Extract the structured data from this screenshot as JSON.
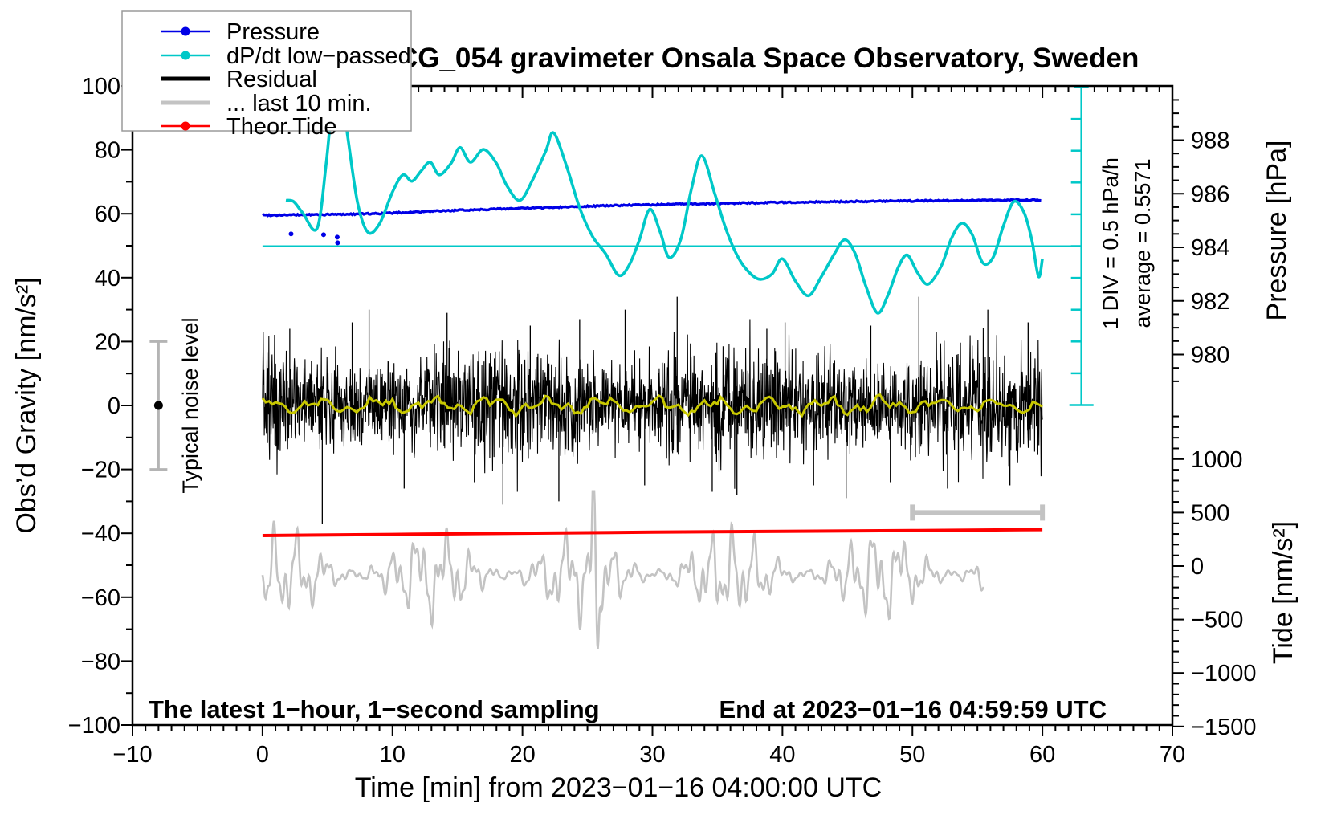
{
  "figure": {
    "title": "SCG_054 gravimeter Onsala Space Observatory, Sweden",
    "note_left": "The latest 1−hour, 1−second sampling",
    "note_right": "End at 2023−01−16 04:59:59 UTC",
    "xlabel": "Time [min] from 2023−01−16 04:00:00 UTC",
    "ylabel_left": "Obs’d Gravity [nm/s²]",
    "ylabel_right_top": "Pressure [hPa]",
    "ylabel_right_bottom": "Tide [nm/s²]",
    "noise_label": "Typical noise level",
    "div_label": "1 DIV = 0.5 hPa/h",
    "avg_label": "average = 0.5571"
  },
  "legend": {
    "items": [
      {
        "label": "Pressure",
        "color": "#0000e6",
        "marker": true,
        "thick": false
      },
      {
        "label": "dP/dt low−passed",
        "color": "#00c8c8",
        "marker": true,
        "thick": false
      },
      {
        "label": "Residual",
        "color": "#000000",
        "marker": false,
        "thick": true
      },
      {
        "label": "... last 10 min.",
        "color": "#c3c3c3",
        "marker": false,
        "thick": true
      },
      {
        "label": "Theor.Tide",
        "color": "#ff0000",
        "marker": true,
        "thick": false
      }
    ]
  },
  "colors": {
    "pressure": "#0000e6",
    "dpdt": "#00c8c8",
    "residual": "#000000",
    "residual_smooth": "#c8c800",
    "last10": "#c3c3c3",
    "tide": "#ff0000",
    "noisebar": "#b4b4b4",
    "frame": "#000000"
  },
  "chart_data": {
    "type": "line",
    "title": "SCG_054 gravimeter Onsala Space Observatory, Sweden",
    "x_axis": {
      "label": "Time [min] from 2023-01-16 04:00:00 UTC",
      "range": [
        -10,
        70
      ],
      "major": 10,
      "minor": 1,
      "ticks": [
        {
          "v": -10,
          "label": "−10"
        },
        {
          "v": 0,
          "label": "0"
        },
        {
          "v": 10,
          "label": "10"
        },
        {
          "v": 20,
          "label": "20"
        },
        {
          "v": 30,
          "label": "30"
        },
        {
          "v": 40,
          "label": "40"
        },
        {
          "v": 50,
          "label": "50"
        },
        {
          "v": 60,
          "label": "60"
        },
        {
          "v": 70,
          "label": "70"
        }
      ]
    },
    "y_left": {
      "label": "Obs'd Gravity [nm/s2]",
      "range": [
        -100,
        100
      ],
      "major": 20,
      "minor": 10,
      "ticks": [
        {
          "v": 100,
          "label": "100"
        },
        {
          "v": 80,
          "label": "80"
        },
        {
          "v": 60,
          "label": "60"
        },
        {
          "v": 40,
          "label": "40"
        },
        {
          "v": 20,
          "label": "20"
        },
        {
          "v": 0,
          "label": "0"
        },
        {
          "v": -20,
          "label": "−20"
        },
        {
          "v": -40,
          "label": "−40"
        },
        {
          "v": -60,
          "label": "−60"
        },
        {
          "v": -80,
          "label": "−80"
        },
        {
          "v": -100,
          "label": "−100"
        }
      ]
    },
    "y_right_pressure": {
      "label": "Pressure [hPa]",
      "minor": 0.5,
      "ticks": [
        {
          "v": 988,
          "label": "988"
        },
        {
          "v": 986,
          "label": "986"
        },
        {
          "v": 984,
          "label": "984"
        },
        {
          "v": 982,
          "label": "982"
        },
        {
          "v": 980,
          "label": "980"
        }
      ]
    },
    "y_right_tide": {
      "label": "Tide [nm/s2]",
      "minor": 100,
      "ticks": [
        {
          "v": 1000,
          "label": "1000"
        },
        {
          "v": 500,
          "label": "500"
        },
        {
          "v": 0,
          "label": "0"
        },
        {
          "v": -500,
          "label": "−500"
        },
        {
          "v": -1000,
          "label": "−1000"
        },
        {
          "v": -1500,
          "label": "−1500"
        }
      ]
    },
    "series": {
      "pressure_hpa": [
        [
          0,
          985.2
        ],
        [
          3,
          985.21
        ],
        [
          6,
          985.23
        ],
        [
          9,
          985.26
        ],
        [
          12,
          985.32
        ],
        [
          15,
          985.38
        ],
        [
          18,
          985.43
        ],
        [
          21,
          985.47
        ],
        [
          24,
          985.52
        ],
        [
          27,
          985.56
        ],
        [
          30,
          985.59
        ],
        [
          33,
          985.62
        ],
        [
          36,
          985.64
        ],
        [
          39,
          985.67
        ],
        [
          42,
          985.69
        ],
        [
          45,
          985.71
        ],
        [
          48,
          985.72
        ],
        [
          51,
          985.74
        ],
        [
          54,
          985.75
        ],
        [
          57,
          985.76
        ],
        [
          60,
          985.77
        ]
      ],
      "pressure_outliers_hpa": [
        [
          2.2,
          984.5
        ],
        [
          4.7,
          984.47
        ],
        [
          5.75,
          984.38
        ],
        [
          5.78,
          984.17
        ]
      ],
      "pressure_average_rate_hpa_per_h": 0.5571,
      "dpdt_hpa_per_h": [
        [
          1.8,
          0.72
        ],
        [
          2.4,
          0.7
        ],
        [
          3.1,
          0.52
        ],
        [
          4.2,
          0.28
        ],
        [
          4.9,
          1.3
        ],
        [
          5.4,
          2.3
        ],
        [
          5.9,
          2.6
        ],
        [
          6.5,
          1.8
        ],
        [
          7.3,
          0.7
        ],
        [
          8.1,
          0.22
        ],
        [
          9.0,
          0.35
        ],
        [
          10.0,
          0.85
        ],
        [
          10.8,
          1.12
        ],
        [
          11.5,
          1.02
        ],
        [
          12.2,
          1.18
        ],
        [
          12.9,
          1.32
        ],
        [
          13.6,
          1.12
        ],
        [
          14.5,
          1.3
        ],
        [
          15.2,
          1.55
        ],
        [
          16.0,
          1.32
        ],
        [
          17.0,
          1.52
        ],
        [
          18.0,
          1.3
        ],
        [
          18.8,
          0.95
        ],
        [
          19.8,
          0.72
        ],
        [
          20.8,
          1.05
        ],
        [
          21.8,
          1.5
        ],
        [
          22.4,
          1.78
        ],
        [
          23.4,
          1.25
        ],
        [
          24.4,
          0.6
        ],
        [
          25.4,
          0.15
        ],
        [
          26.4,
          -0.12
        ],
        [
          27.4,
          -0.46
        ],
        [
          28.2,
          -0.3
        ],
        [
          29.0,
          0.1
        ],
        [
          29.8,
          0.58
        ],
        [
          30.6,
          0.22
        ],
        [
          31.3,
          -0.18
        ],
        [
          32.2,
          0.12
        ],
        [
          33.0,
          0.9
        ],
        [
          33.8,
          1.42
        ],
        [
          34.8,
          0.82
        ],
        [
          35.6,
          0.3
        ],
        [
          36.4,
          -0.1
        ],
        [
          37.2,
          -0.36
        ],
        [
          38.2,
          -0.52
        ],
        [
          39.2,
          -0.44
        ],
        [
          40.0,
          -0.2
        ],
        [
          41.0,
          -0.55
        ],
        [
          42.0,
          -0.78
        ],
        [
          43.0,
          -0.48
        ],
        [
          44.0,
          -0.12
        ],
        [
          44.8,
          0.1
        ],
        [
          45.6,
          -0.12
        ],
        [
          46.4,
          -0.62
        ],
        [
          47.3,
          -1.05
        ],
        [
          48.1,
          -0.78
        ],
        [
          48.9,
          -0.34
        ],
        [
          49.6,
          -0.14
        ],
        [
          50.4,
          -0.42
        ],
        [
          51.2,
          -0.6
        ],
        [
          52.2,
          -0.32
        ],
        [
          53.0,
          0.12
        ],
        [
          53.8,
          0.36
        ],
        [
          54.6,
          0.18
        ],
        [
          55.4,
          -0.26
        ],
        [
          56.2,
          -0.18
        ],
        [
          57.0,
          0.32
        ],
        [
          57.8,
          0.7
        ],
        [
          58.6,
          0.52
        ],
        [
          59.2,
          0.08
        ],
        [
          59.7,
          -0.48
        ],
        [
          60.0,
          -0.2
        ]
      ],
      "dpdt_zero_gravity_level": 50,
      "dpdt_gravity_units_per_hpa_h": 39.6,
      "dpdt_scalebar": {
        "div_hpa_per_h": 0.5,
        "divisions": 10,
        "t_position": 63
      },
      "theor_tide_nms2": [
        [
          0,
          285
        ],
        [
          10,
          296
        ],
        [
          20,
          307
        ],
        [
          30,
          317
        ],
        [
          40,
          325
        ],
        [
          50,
          332
        ],
        [
          60,
          341
        ]
      ],
      "residual": {
        "center": 0,
        "sigma_nms2": 8,
        "seed": 12345,
        "spikes_t_g": [
          [
            2.1,
            24
          ],
          [
            4.6,
            -37
          ],
          [
            6.9,
            26
          ],
          [
            8.2,
            30
          ],
          [
            10.9,
            -26
          ],
          [
            14.2,
            29
          ],
          [
            16.3,
            -24
          ],
          [
            18.5,
            -31
          ],
          [
            20.6,
            25
          ],
          [
            22.8,
            -30
          ],
          [
            24.4,
            27
          ],
          [
            27.9,
            30
          ],
          [
            29.4,
            -25
          ],
          [
            31.9,
            34
          ],
          [
            34.6,
            -27
          ],
          [
            36.5,
            -28
          ],
          [
            38.8,
            24
          ],
          [
            40.2,
            26
          ],
          [
            42.4,
            -25
          ],
          [
            44.9,
            -29
          ],
          [
            46.8,
            25
          ],
          [
            48.3,
            -24
          ],
          [
            50.5,
            34
          ],
          [
            52.7,
            -26
          ],
          [
            55.8,
            30
          ],
          [
            57.5,
            -25
          ],
          [
            58.9,
            26
          ]
        ]
      },
      "last10": {
        "center_tide": -80,
        "t_end": 55.5,
        "seed": 777,
        "components_amp_period": [
          [
            250,
            1.85
          ],
          [
            165,
            0.82
          ],
          [
            100,
            0.44
          ]
        ],
        "modulation": [
          0.55,
          0.45,
          11.5
        ],
        "spikes_t_tide": [
          [
            25.45,
            620
          ],
          [
            25.78,
            -700
          ]
        ]
      },
      "noise_bar": {
        "t": -8,
        "center_g": 0,
        "half_range_g": 20
      },
      "scalebar_10min": {
        "t0": 50,
        "t1": 60,
        "tide_level": 500
      }
    }
  }
}
